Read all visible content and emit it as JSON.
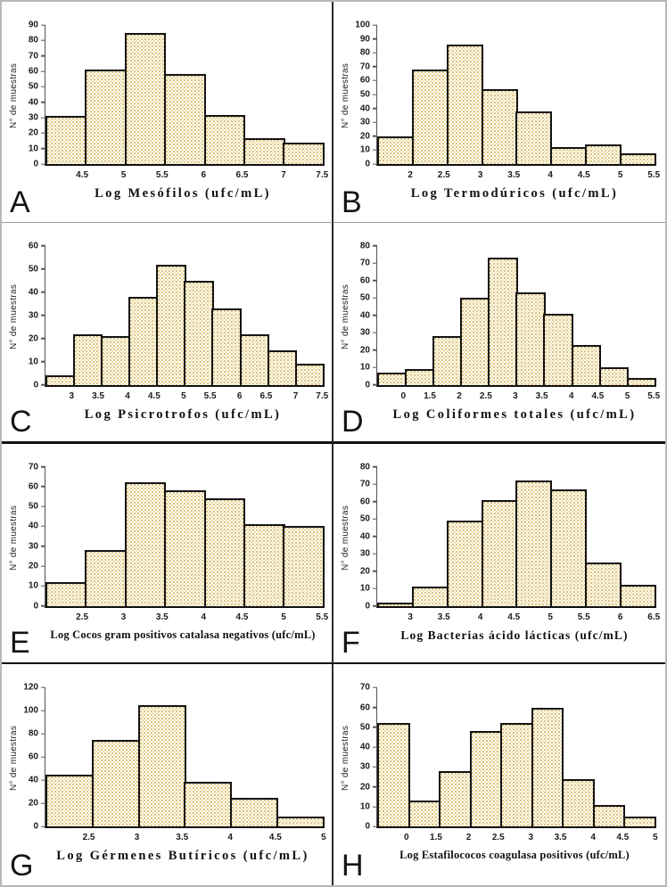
{
  "figure": {
    "description": "Panel of eight microbiological count histograms, panels A to H",
    "outer_border_color": "#b9b9b9"
  },
  "colors": {
    "bar_fill_background": "#fffdf3",
    "bar_pattern_dot": "#d9ba6e",
    "bar_pattern_dot_light": "#ece0b4",
    "bar_border": "#141414",
    "axis_line": "#555555",
    "text": "#1c1c1c"
  },
  "chart_data": [
    {
      "type": "bar",
      "subtype": "histogram",
      "panel": "A",
      "xlabel": "Log Mesófilos (ufc/mL)",
      "ylabel": "N° de muestras",
      "categories": [
        "4.5",
        "5",
        "5.5",
        "6",
        "6.5",
        "7",
        "7.5"
      ],
      "values": [
        31,
        61,
        85,
        58,
        32,
        17,
        14
      ],
      "ylim": [
        0,
        90
      ],
      "yticks": [
        0,
        10,
        20,
        30,
        40,
        50,
        60,
        70,
        80,
        90
      ],
      "grid": false,
      "bar_gap": 0,
      "bin_label_position": "right-edge"
    },
    {
      "type": "bar",
      "subtype": "histogram",
      "panel": "B",
      "xlabel": "Log Termodúricos (ufc/mL)",
      "ylabel": "N° de muestras",
      "categories": [
        "2",
        "2.5",
        "3",
        "3.5",
        "4",
        "4.5",
        "5",
        "5.5"
      ],
      "values": [
        20,
        68,
        86,
        54,
        38,
        12,
        14,
        8
      ],
      "ylim": [
        0,
        100
      ],
      "yticks": [
        0,
        10,
        20,
        30,
        40,
        50,
        60,
        70,
        80,
        90,
        100
      ],
      "grid": false,
      "bar_gap": 0,
      "bin_label_position": "right-edge"
    },
    {
      "type": "bar",
      "subtype": "histogram",
      "panel": "C",
      "xlabel": "Log Psicrotrofos (ufc/mL)",
      "ylabel": "N° de muestras",
      "categories": [
        "3",
        "3.5",
        "4",
        "4.5",
        "5",
        "5.5",
        "6",
        "6.5",
        "7",
        "7.5"
      ],
      "values": [
        4,
        22,
        21,
        38,
        52,
        45,
        33,
        22,
        15,
        9
      ],
      "ylim": [
        0,
        60
      ],
      "yticks": [
        0,
        10,
        20,
        30,
        40,
        50,
        60
      ],
      "grid": false,
      "bar_gap": 0,
      "bin_label_position": "right-edge"
    },
    {
      "type": "bar",
      "subtype": "histogram",
      "panel": "D",
      "xlabel": "Log Coliformes totales (ufc/mL)",
      "ylabel": "N° de muestras",
      "categories": [
        "0",
        "1.5",
        "2",
        "2.5",
        "3",
        "3.5",
        "4",
        "4.5",
        "5",
        "5.5"
      ],
      "values": [
        7,
        9,
        28,
        50,
        73,
        53,
        41,
        23,
        10,
        4
      ],
      "ylim": [
        0,
        80
      ],
      "yticks": [
        0,
        10,
        20,
        30,
        40,
        50,
        60,
        70,
        80
      ],
      "grid": false,
      "bar_gap": 0,
      "bin_label_position": "right-edge"
    },
    {
      "type": "bar",
      "subtype": "histogram",
      "panel": "E",
      "xlabel": "Log Cocos gram positivos catalasa negativos (ufc/mL)",
      "ylabel": "N° de muestras",
      "categories": [
        "2.5",
        "3",
        "3.5",
        "4",
        "4.5",
        "5",
        "5.5"
      ],
      "values": [
        12,
        28,
        62,
        58,
        54,
        41,
        40
      ],
      "ylim": [
        0,
        70
      ],
      "yticks": [
        0,
        10,
        20,
        30,
        40,
        50,
        60,
        70
      ],
      "grid": false,
      "bar_gap": 0,
      "bin_label_position": "right-edge"
    },
    {
      "type": "bar",
      "subtype": "histogram",
      "panel": "F",
      "xlabel": "Log Bacterias ácido lácticas (ufc/mL)",
      "ylabel": "N° de muestras",
      "categories": [
        "3",
        "3.5",
        "4",
        "4.5",
        "5",
        "5.5",
        "6",
        "6.5"
      ],
      "values": [
        2,
        11,
        49,
        61,
        72,
        67,
        25,
        12
      ],
      "ylim": [
        0,
        80
      ],
      "yticks": [
        0,
        10,
        20,
        30,
        40,
        50,
        60,
        70,
        80
      ],
      "grid": false,
      "bar_gap": 0,
      "bin_label_position": "right-edge"
    },
    {
      "type": "bar",
      "subtype": "histogram",
      "panel": "G",
      "xlabel": "Log Gérmenes Butíricos (ufc/mL)",
      "ylabel": "N° de muestras",
      "categories": [
        "2.5",
        "3",
        "3.5",
        "4",
        "4.5",
        "5"
      ],
      "values": [
        45,
        75,
        105,
        39,
        25,
        9
      ],
      "ylim": [
        0,
        120
      ],
      "yticks": [
        0,
        20,
        40,
        60,
        80,
        100,
        120
      ],
      "grid": false,
      "bar_gap": 0,
      "bin_label_position": "right-edge"
    },
    {
      "type": "bar",
      "subtype": "histogram",
      "panel": "H",
      "xlabel": "Log Estafilococos coagulasa positivos (ufc/mL)",
      "ylabel": "N° de muestras",
      "categories": [
        "0",
        "1.5",
        "2",
        "2.5",
        "3",
        "3.5",
        "4",
        "4.5",
        "5"
      ],
      "values": [
        52,
        13,
        28,
        48,
        52,
        60,
        24,
        11,
        5
      ],
      "ylim": [
        0,
        70
      ],
      "yticks": [
        0,
        10,
        20,
        30,
        40,
        50,
        60,
        70
      ],
      "grid": false,
      "bar_gap": 0,
      "bin_label_position": "right-edge"
    }
  ]
}
